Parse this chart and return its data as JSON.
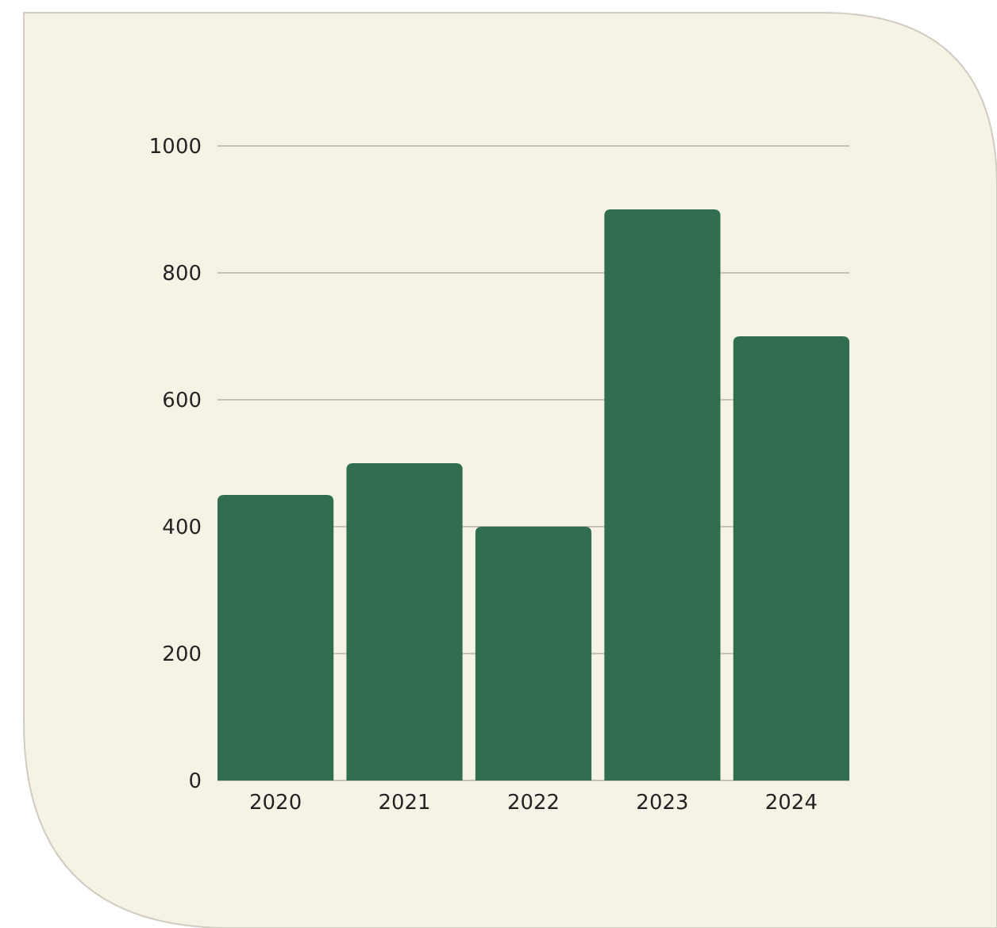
{
  "chart_data": {
    "type": "bar",
    "categories": [
      "2020",
      "2021",
      "2022",
      "2023",
      "2024"
    ],
    "values": [
      450,
      500,
      400,
      900,
      700
    ],
    "color": "#316e50",
    "ylim": [
      0,
      1000
    ],
    "yticks": [
      0,
      200,
      400,
      600,
      800,
      1000
    ],
    "grid": "y"
  }
}
